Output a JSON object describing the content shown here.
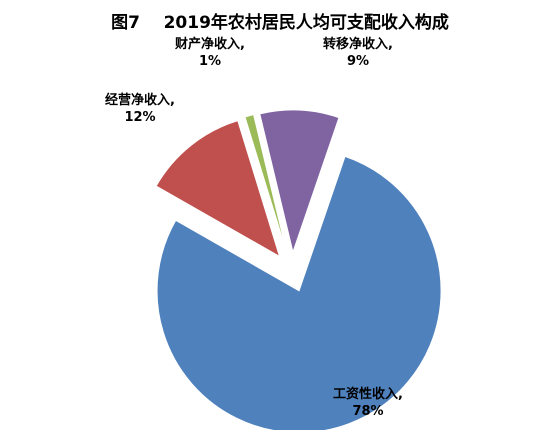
{
  "chart_data": {
    "type": "pie",
    "title": "图7    2019年农村居民人均可支配收入构成",
    "series": [
      {
        "name": "工资性收入",
        "color": "#4f81bd"
      },
      {
        "name": "经营净收入",
        "color": "#c0504d"
      },
      {
        "name": "财产净收入",
        "color": "#9bbb59"
      },
      {
        "name": "转移净收入",
        "color": "#8064a2"
      }
    ],
    "values": [
      78,
      12,
      1,
      9
    ],
    "value_labels": [
      "工资性收入, 78%",
      "经营净收入, 12%",
      "财产净收入, 1%",
      "转移净收入, 9%"
    ]
  }
}
